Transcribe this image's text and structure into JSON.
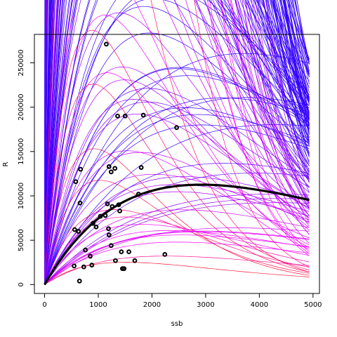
{
  "chart_data": {
    "type": "scatter",
    "title": "",
    "xlabel": "ssb",
    "ylabel": "R",
    "xlim": [
      -190,
      5120
    ],
    "ylim": [
      -10000,
      282000
    ],
    "xticks": [
      0,
      1000,
      2000,
      3000,
      4000,
      5000
    ],
    "yticks": [
      0,
      50000,
      100000,
      150000,
      200000,
      250000
    ],
    "fit_curve": {
      "description_of_form": "Ricker",
      "a": 105,
      "b": 0.000343,
      "x_max": 4930,
      "color": "#000000"
    },
    "ensemble": {
      "count": 180,
      "x_max": 4930,
      "color_low": "#ff1a1a",
      "color_mid": "#ff00ff",
      "color_high": "#3300ff"
    },
    "points": [
      [
        1150,
        271000
      ],
      [
        1360,
        190000
      ],
      [
        1500,
        190000
      ],
      [
        1840,
        191000
      ],
      [
        2460,
        177000
      ],
      [
        1200,
        133000
      ],
      [
        1310,
        131000
      ],
      [
        670,
        130000
      ],
      [
        1800,
        132000
      ],
      [
        1240,
        127000
      ],
      [
        580,
        116000
      ],
      [
        660,
        92000
      ],
      [
        1750,
        102000
      ],
      [
        1170,
        91000
      ],
      [
        1260,
        88000
      ],
      [
        1380,
        90000
      ],
      [
        1400,
        83000
      ],
      [
        1130,
        78000
      ],
      [
        1040,
        77000
      ],
      [
        900,
        69000
      ],
      [
        960,
        65000
      ],
      [
        560,
        62000
      ],
      [
        630,
        60000
      ],
      [
        1190,
        63000
      ],
      [
        1200,
        56000
      ],
      [
        760,
        39000
      ],
      [
        1240,
        44000
      ],
      [
        1430,
        37000
      ],
      [
        1570,
        37000
      ],
      [
        850,
        32000
      ],
      [
        2240,
        34000
      ],
      [
        1320,
        27000
      ],
      [
        1680,
        27000
      ],
      [
        550,
        21000
      ],
      [
        730,
        20000
      ],
      [
        880,
        22000
      ],
      [
        1450,
        18000
      ],
      [
        1480,
        18000
      ],
      [
        650,
        4000
      ]
    ],
    "point_color": "#000000"
  }
}
